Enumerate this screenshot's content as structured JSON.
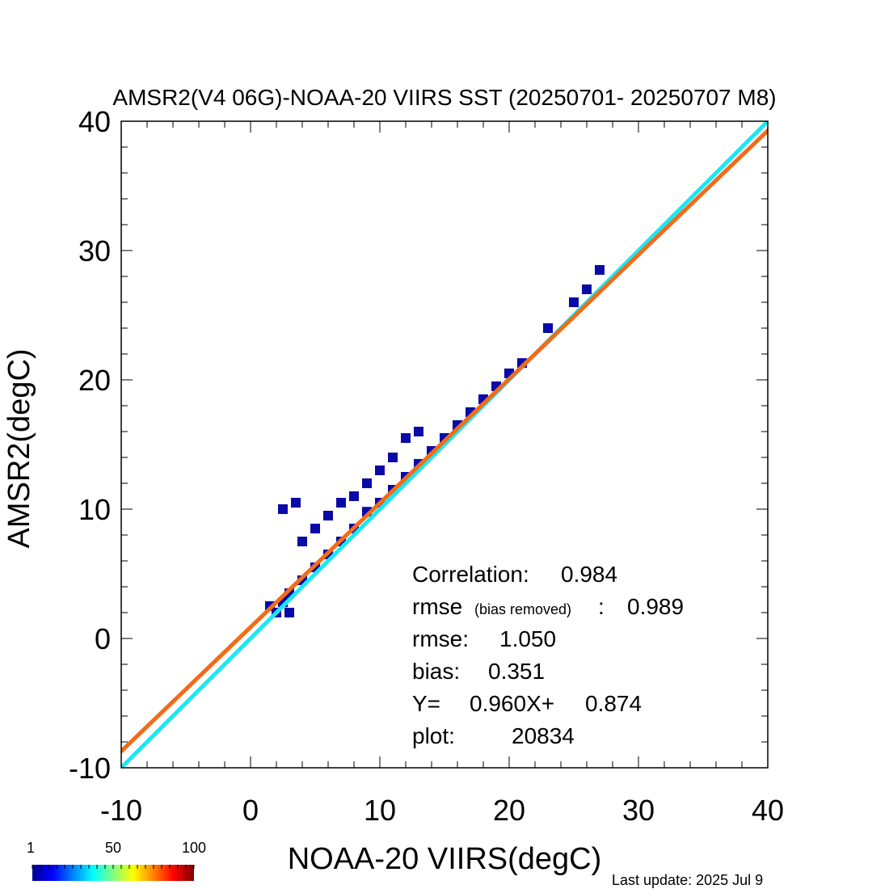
{
  "chart_data": {
    "type": "scatter",
    "subtype": "density-scatter",
    "title": "AMSR2(V4 06G)-NOAA-20 VIIRS SST (20250701- 20250707 M8)",
    "xlabel": "NOAA-20 VIIRS(degC)",
    "ylabel": "AMSR2(degC)",
    "xlim": [
      -10,
      40
    ],
    "ylim": [
      -10,
      40
    ],
    "xticks": [
      "-10",
      "0",
      "10",
      "20",
      "30",
      "40"
    ],
    "yticks": [
      "-10",
      "0",
      "10",
      "20",
      "30",
      "40"
    ],
    "grid": false,
    "lines": [
      {
        "name": "1:1",
        "color": "#1ee6f0",
        "slope": 1.0,
        "intercept": 0.0
      },
      {
        "name": "fit",
        "color": "#f26b18",
        "slope": 0.96,
        "intercept": 0.874
      }
    ],
    "stats": {
      "correlation_label": "Correlation:",
      "correlation": "0.984",
      "rmse_br_label": "rmse",
      "rmse_br_note": "(bias removed)",
      "rmse_br_colon": ":",
      "rmse_br": "0.989",
      "rmse_label": "rmse:",
      "rmse": "1.050",
      "bias_label": "bias:",
      "bias": "0.351",
      "fit_y": "Y=",
      "fit_slope": "0.960X+",
      "fit_intercept": "0.874",
      "plot_label": "plot:",
      "plot_count": "20834"
    },
    "density_points": [
      {
        "x": 1.5,
        "y": 2.5
      },
      {
        "x": 2,
        "y": 2
      },
      {
        "x": 2.5,
        "y": 2.8
      },
      {
        "x": 3,
        "y": 3.5
      },
      {
        "x": 3,
        "y": 2.0
      },
      {
        "x": 4,
        "y": 4.5
      },
      {
        "x": 4,
        "y": 7.5
      },
      {
        "x": 5,
        "y": 5.5
      },
      {
        "x": 5,
        "y": 8.5
      },
      {
        "x": 6,
        "y": 6.5
      },
      {
        "x": 6,
        "y": 9.5
      },
      {
        "x": 7,
        "y": 7.5
      },
      {
        "x": 7,
        "y": 10.5
      },
      {
        "x": 8,
        "y": 8.5
      },
      {
        "x": 8,
        "y": 11.0
      },
      {
        "x": 9,
        "y": 9.8
      },
      {
        "x": 9,
        "y": 12.0
      },
      {
        "x": 10,
        "y": 10.5
      },
      {
        "x": 10,
        "y": 13.0
      },
      {
        "x": 11,
        "y": 11.5
      },
      {
        "x": 11,
        "y": 14.0
      },
      {
        "x": 12,
        "y": 12.5
      },
      {
        "x": 12,
        "y": 15.5
      },
      {
        "x": 13,
        "y": 13.5
      },
      {
        "x": 13,
        "y": 16.0
      },
      {
        "x": 14,
        "y": 14.5
      },
      {
        "x": 15,
        "y": 15.5
      },
      {
        "x": 16,
        "y": 16.5
      },
      {
        "x": 17,
        "y": 17.5
      },
      {
        "x": 18,
        "y": 18.5
      },
      {
        "x": 19,
        "y": 19.5
      },
      {
        "x": 20,
        "y": 20.5
      },
      {
        "x": 21,
        "y": 21.3
      },
      {
        "x": 2.5,
        "y": 10.0
      },
      {
        "x": 3.5,
        "y": 10.5
      },
      {
        "x": 23,
        "y": 24.0
      },
      {
        "x": 27,
        "y": 28.5
      },
      {
        "x": 26,
        "y": 27.0
      },
      {
        "x": 25,
        "y": 26.0
      }
    ],
    "colorbar": {
      "ticks": [
        "1",
        "50",
        "100"
      ],
      "colors": [
        "#00008f",
        "#0000ff",
        "#0080ff",
        "#00ffff",
        "#80ff80",
        "#ffff00",
        "#ff8000",
        "#ff0000",
        "#800000"
      ]
    }
  },
  "footer": {
    "last_update": "Last update: 2025 Jul  9"
  }
}
